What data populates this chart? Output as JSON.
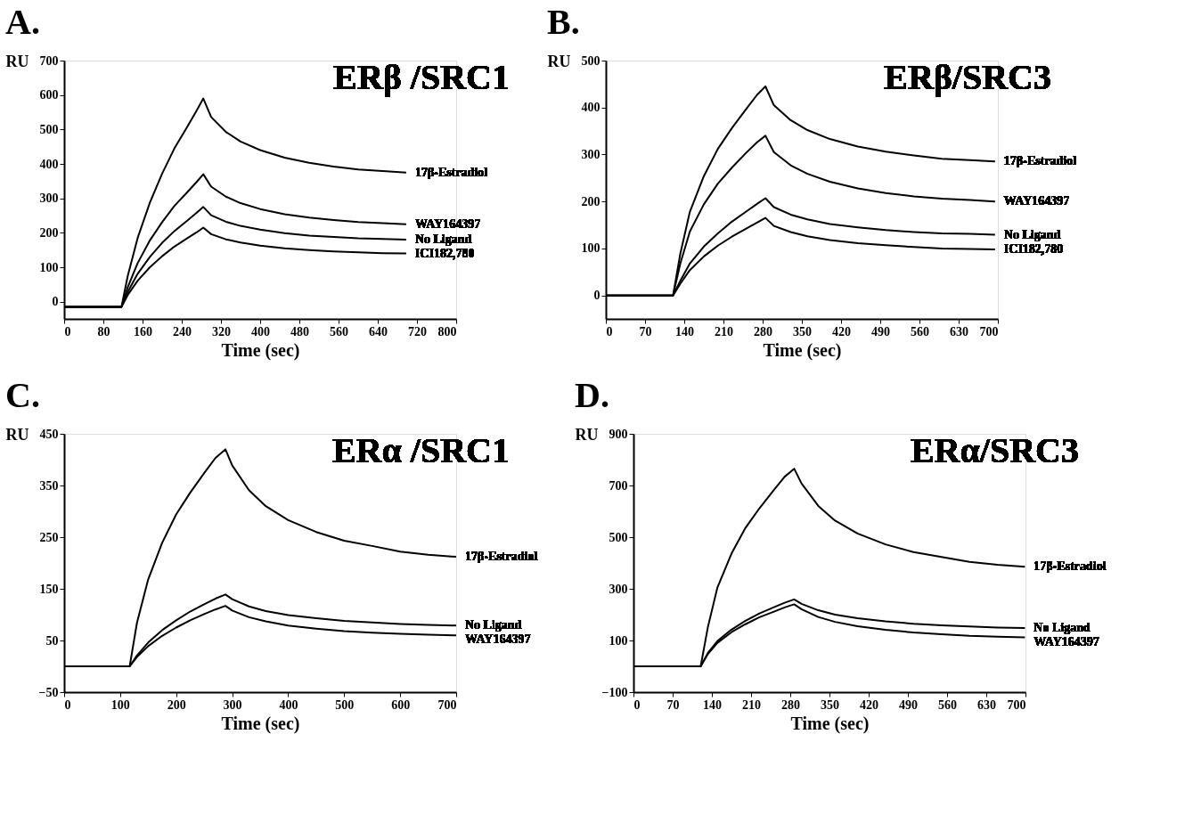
{
  "chart_data": [
    {
      "type": "line",
      "title": "A.",
      "annotations": [
        "ERβ /SRC1"
      ],
      "xlabel": "Time (sec)",
      "ylabel": "RU",
      "grid": false,
      "x": [
        0,
        117,
        130,
        150,
        175,
        200,
        225,
        250,
        270,
        284,
        300,
        330,
        360,
        400,
        450,
        500,
        550,
        600,
        650,
        698
      ],
      "xlim": [
        0,
        800
      ],
      "xticks": [
        0,
        80,
        160,
        240,
        320,
        400,
        480,
        560,
        640,
        720,
        800
      ],
      "ylim": [
        -50,
        700
      ],
      "yticks": [
        0,
        100,
        200,
        300,
        400,
        500,
        600,
        700
      ],
      "series": [
        {
          "name": "17β-Estradiol",
          "color": "#000000",
          "values": [
            -15,
            -15,
            76,
            185,
            288,
            372,
            445,
            505,
            554,
            590,
            536,
            493,
            465,
            440,
            418,
            403,
            392,
            384,
            379,
            375
          ]
        },
        {
          "name": "WAY164397",
          "color": "#000000",
          "values": [
            -15,
            -15,
            43,
            112,
            178,
            231,
            278,
            316,
            347,
            370,
            334,
            305,
            286,
            269,
            254,
            244,
            237,
            231,
            228,
            225
          ]
        },
        {
          "name": "No Ligand",
          "color": "#000000",
          "values": [
            -15,
            -15,
            29,
            81,
            130,
            171,
            205,
            234,
            258,
            275,
            251,
            232,
            220,
            209,
            199,
            192,
            188,
            184,
            182,
            180
          ]
        },
        {
          "name": "ICI182,780",
          "color": "#000000",
          "values": [
            -15,
            -15,
            20,
            61,
            100,
            132,
            160,
            183,
            201,
            215,
            196,
            181,
            172,
            163,
            155,
            150,
            146,
            143,
            141,
            140
          ]
        }
      ]
    },
    {
      "type": "line",
      "title": "B.",
      "annotations": [
        "ERβ/SRC3"
      ],
      "xlabel": "Time (sec)",
      "ylabel": "RU",
      "grid": false,
      "x": [
        0,
        120,
        133,
        150,
        175,
        200,
        225,
        250,
        270,
        285,
        300,
        330,
        360,
        400,
        450,
        500,
        550,
        600,
        650,
        695
      ],
      "xlim": [
        0,
        700
      ],
      "xticks": [
        0,
        70,
        140,
        210,
        280,
        350,
        420,
        490,
        560,
        630,
        700
      ],
      "ylim": [
        -50,
        500
      ],
      "yticks": [
        0,
        100,
        200,
        300,
        400,
        500
      ],
      "series": [
        {
          "name": "17β-Estradiol",
          "color": "#000000",
          "values": [
            0,
            0,
            89,
            178,
            254,
            312,
            356,
            396,
            427,
            445,
            405,
            373,
            352,
            333,
            317,
            306,
            298,
            291,
            288,
            285
          ]
        },
        {
          "name": "WAY164397",
          "color": "#000000",
          "values": [
            0,
            0,
            68,
            136,
            194,
            238,
            272,
            303,
            326,
            340,
            305,
            277,
            259,
            242,
            228,
            218,
            211,
            206,
            203,
            200
          ]
        },
        {
          "name": "No Ligand",
          "color": "#000000",
          "values": [
            0,
            0,
            31,
            68,
            104,
            132,
            157,
            178,
            195,
            207,
            188,
            172,
            162,
            152,
            145,
            139,
            135,
            132,
            131,
            129
          ]
        },
        {
          "name": "ICI182,780",
          "color": "#000000",
          "values": [
            0,
            0,
            25,
            54,
            83,
            106,
            125,
            142,
            155,
            165,
            148,
            135,
            126,
            118,
            111,
            107,
            103,
            100,
            99,
            98
          ]
        }
      ]
    },
    {
      "type": "line",
      "title": "C.",
      "annotations": [
        "ERα /SRC1"
      ],
      "xlabel": "Time (sec)",
      "ylabel": "RU",
      "grid": false,
      "x": [
        0,
        117,
        130,
        150,
        175,
        200,
        225,
        250,
        270,
        288,
        300,
        330,
        360,
        400,
        450,
        500,
        550,
        600,
        650,
        700
      ],
      "xlim": [
        0,
        700
      ],
      "xticks": [
        0,
        100,
        200,
        300,
        400,
        500,
        600,
        700
      ],
      "ylim": [
        -50,
        450
      ],
      "yticks": [
        -50,
        50,
        150,
        250,
        350,
        450
      ],
      "series": [
        {
          "name": "17β-Estradiol",
          "color": "#000000",
          "values": [
            0,
            0,
            84,
            168,
            239,
            294,
            336,
            374,
            403,
            420,
            389,
            341,
            310,
            283,
            260,
            243,
            233,
            222,
            216,
            212
          ]
        },
        {
          "name": "No Ligand",
          "color": "#000000",
          "values": [
            0,
            0,
            21,
            46,
            70,
            89,
            106,
            120,
            131,
            139,
            130,
            116,
            107,
            99,
            93,
            88,
            85,
            82,
            80,
            79
          ]
        },
        {
          "name": "WAY164397",
          "color": "#000000",
          "values": [
            0,
            0,
            18,
            39,
            59,
            75,
            89,
            101,
            110,
            117,
            108,
            95,
            87,
            79,
            73,
            68,
            65,
            63,
            61,
            60
          ]
        }
      ]
    },
    {
      "type": "line",
      "title": "D.",
      "annotations": [
        "ERα/SRC3"
      ],
      "xlabel": "Time (sec)",
      "ylabel": "RU",
      "grid": false,
      "x": [
        0,
        120,
        133,
        150,
        175,
        200,
        225,
        250,
        270,
        287,
        300,
        330,
        360,
        400,
        450,
        500,
        550,
        600,
        650,
        699
      ],
      "xlim": [
        0,
        700
      ],
      "xticks": [
        0,
        70,
        140,
        210,
        280,
        350,
        420,
        490,
        560,
        630,
        700
      ],
      "ylim": [
        -100,
        900
      ],
      "yticks": [
        -100,
        100,
        300,
        500,
        700,
        900
      ],
      "series": [
        {
          "name": "17β-Estradiol",
          "color": "#000000",
          "values": [
            0,
            0,
            153,
            306,
            436,
            536,
            612,
            681,
            734,
            765,
            708,
            621,
            564,
            514,
            472,
            442,
            423,
            404,
            393,
            385
          ]
        },
        {
          "name": "No Ligand",
          "color": "#000000",
          "values": [
            0,
            0,
            52,
            98,
            142,
            176,
            205,
            228,
            246,
            259,
            242,
            217,
            200,
            186,
            174,
            165,
            159,
            154,
            150,
            148
          ]
        },
        {
          "name": "WAY164397",
          "color": "#000000",
          "values": [
            0,
            0,
            48,
            91,
            132,
            163,
            190,
            211,
            228,
            240,
            221,
            191,
            172,
            155,
            141,
            131,
            124,
            118,
            115,
            112
          ]
        }
      ]
    }
  ]
}
